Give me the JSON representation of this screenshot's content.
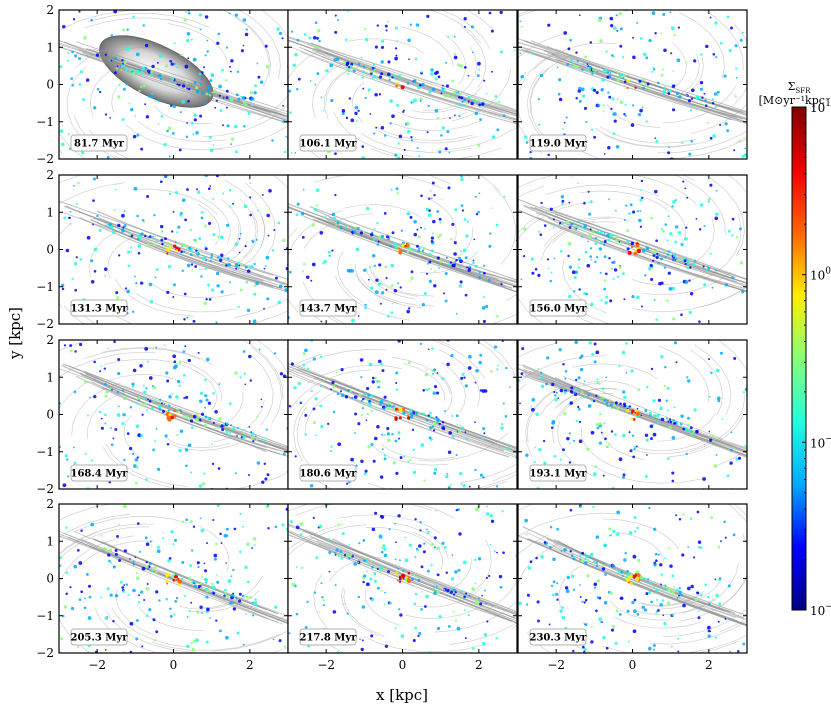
{
  "chart_data": {
    "type": "heatmap",
    "layout": {
      "rows": 4,
      "cols": 3
    },
    "xlabel": "x [kpc]",
    "ylabel": "y [kpc]",
    "xlim": [
      -3,
      3
    ],
    "ylim": [
      -2,
      2
    ],
    "xticks": [
      -2,
      0,
      2
    ],
    "xtick_labels": [
      "−2",
      "0",
      "2"
    ],
    "yticks": [
      2,
      1,
      0,
      -1,
      -2
    ],
    "ytick_labels": [
      "2",
      "1",
      "0",
      "−1",
      "−2"
    ],
    "panels": [
      {
        "time": "81.7 Myr"
      },
      {
        "time": "106.1 Myr"
      },
      {
        "time": "119.0 Myr"
      },
      {
        "time": "131.3 Myr"
      },
      {
        "time": "143.7 Myr"
      },
      {
        "time": "156.0 Myr"
      },
      {
        "time": "168.4 Myr"
      },
      {
        "time": "180.6 Myr"
      },
      {
        "time": "193.1 Myr"
      },
      {
        "time": "205.3 Myr"
      },
      {
        "time": "217.8 Myr"
      },
      {
        "time": "230.3 Myr"
      }
    ],
    "colorbar": {
      "title_line1": "Σ",
      "title_sub": "SFR",
      "title_line2": "[M⊙yr⁻¹kpc⁻²]",
      "scale": "log",
      "range": [
        0.01,
        10
      ],
      "colormap": "jet",
      "ticks": [
        10,
        1,
        0.1,
        0.01
      ],
      "tick_base": [
        "10",
        "10",
        "10",
        "10"
      ],
      "tick_exp": [
        "1",
        "0",
        "−1",
        "−2"
      ],
      "colors": [
        "#000080",
        "#0000ff",
        "#00aaff",
        "#22ffdd",
        "#88ff77",
        "#ffee00",
        "#ff6600",
        "#ee0000",
        "#800000"
      ]
    }
  }
}
